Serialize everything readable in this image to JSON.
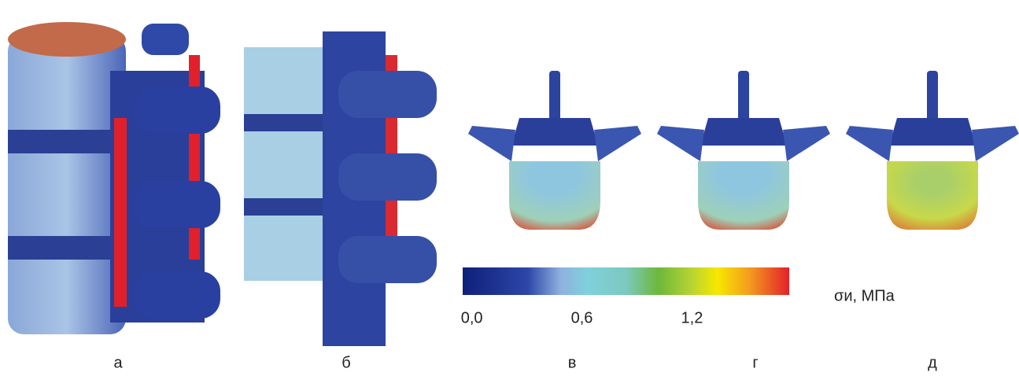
{
  "panels": [
    "а",
    "б",
    "в",
    "г",
    "д"
  ],
  "colorbar": {
    "lim": [
      -0.05,
      1.73
    ],
    "ticks": [
      {
        "value": 0,
        "label": "0,0"
      },
      {
        "value": 0.6,
        "label": "0,6"
      },
      {
        "value": 1.2,
        "label": "1,2"
      }
    ],
    "unit": "σи, МПа"
  }
}
